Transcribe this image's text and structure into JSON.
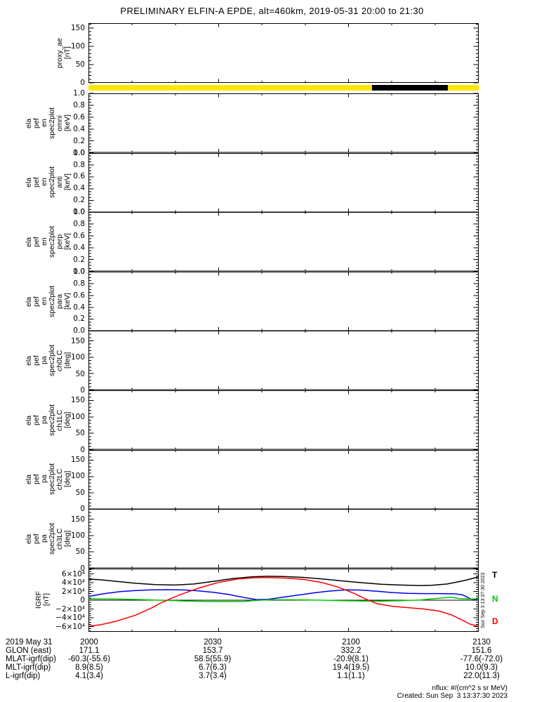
{
  "chart_data": {
    "type": "line",
    "title": "PRELIMINARY ELFIN-A EPDE, alt=460km, 2019-05-31 20:00 to 21:30",
    "x_axis": {
      "tick_labels": [
        "2000",
        "2030",
        "2100",
        "2130"
      ],
      "minor_divisions": 9,
      "time_range": [
        "2019-05-31 20:00",
        "2019-05-31 21:30"
      ]
    },
    "mode_bar": {
      "color": "#ffe600",
      "segments": [
        {
          "color": "#000000",
          "start": 0.727,
          "end": 0.921
        }
      ]
    },
    "right_labels": [
      {
        "text": "T",
        "color": "#000000"
      },
      {
        "text": "N",
        "color": "#00c800"
      },
      {
        "text": "D",
        "color": "#ff0000"
      }
    ],
    "side_timestamp": "Sun Sep  3 13:37:30 2023",
    "panels": [
      {
        "name": "proxy_ae",
        "label": "proxy_ae\n[nT]",
        "ylim": [
          0,
          163
        ],
        "minor_start": 0,
        "minor_step": 10,
        "major": [
          {
            "v": 0,
            "t": "0"
          },
          {
            "v": 50,
            "t": "50"
          },
          {
            "v": 100,
            "t": "100"
          },
          {
            "v": 150,
            "t": "150"
          }
        ]
      },
      {
        "name": "ela_pef_en_spec2plot_omni",
        "label": "ela\npef\nen\nspec2plot\nomni\n[keV]",
        "ylim": [
          0,
          1
        ],
        "minor_start": 0,
        "minor_step": 0.05,
        "major": [
          {
            "v": 0,
            "t": "0.0"
          },
          {
            "v": 0.2,
            "t": "0.2"
          },
          {
            "v": 0.4,
            "t": "0.4"
          },
          {
            "v": 0.6,
            "t": "0.6"
          },
          {
            "v": 0.8,
            "t": "0.8"
          },
          {
            "v": 1,
            "t": "1.0"
          }
        ]
      },
      {
        "name": "ela_pef_en_spec2plot_anti",
        "label": "ela\npef\nen\nspec2plot\nanti\n[keV]",
        "ylim": [
          0,
          1
        ],
        "minor_start": 0,
        "minor_step": 0.05,
        "major": [
          {
            "v": 0,
            "t": "0.0"
          },
          {
            "v": 0.2,
            "t": "0.2"
          },
          {
            "v": 0.4,
            "t": "0.4"
          },
          {
            "v": 0.6,
            "t": "0.6"
          },
          {
            "v": 0.8,
            "t": "0.8"
          },
          {
            "v": 1,
            "t": "1.0"
          }
        ]
      },
      {
        "name": "ela_pef_en_spec2plot_perp",
        "label": "ela\npef\nen\nspec2plot\nperp\n[keV]",
        "ylim": [
          0,
          1
        ],
        "minor_start": 0,
        "minor_step": 0.05,
        "major": [
          {
            "v": 0,
            "t": "0.0"
          },
          {
            "v": 0.2,
            "t": "0.2"
          },
          {
            "v": 0.4,
            "t": "0.4"
          },
          {
            "v": 0.6,
            "t": "0.6"
          },
          {
            "v": 0.8,
            "t": "0.8"
          },
          {
            "v": 1,
            "t": "1.0"
          }
        ]
      },
      {
        "name": "ela_pef_en_spec2plot_para",
        "label": "ela\npef\nen\nspec2plot\npara\n[keV]",
        "ylim": [
          0,
          1
        ],
        "minor_start": 0,
        "minor_step": 0.05,
        "major": [
          {
            "v": 0,
            "t": "0.0"
          },
          {
            "v": 0.2,
            "t": "0.2"
          },
          {
            "v": 0.4,
            "t": "0.4"
          },
          {
            "v": 0.6,
            "t": "0.6"
          },
          {
            "v": 0.8,
            "t": "0.8"
          },
          {
            "v": 1,
            "t": "1.0"
          }
        ]
      },
      {
        "name": "ela_pef_pa_spec2plot_ch0LC",
        "label": "ela\npef\npa\nspec2plot\nch0LC\n[deg]",
        "ylim": [
          0,
          181
        ],
        "minor_start": 0,
        "minor_step": 10,
        "major": [
          {
            "v": 0,
            "t": "0"
          },
          {
            "v": 50,
            "t": "50"
          },
          {
            "v": 100,
            "t": "100"
          },
          {
            "v": 150,
            "t": "150"
          }
        ]
      },
      {
        "name": "ela_pef_pa_spec2plot_ch1LC",
        "label": "ela\npef\npa\nspec2plot\nch1LC\n[deg]",
        "ylim": [
          0,
          181
        ],
        "minor_start": 0,
        "minor_step": 10,
        "major": [
          {
            "v": 0,
            "t": "0"
          },
          {
            "v": 50,
            "t": "50"
          },
          {
            "v": 100,
            "t": "100"
          },
          {
            "v": 150,
            "t": "150"
          }
        ]
      },
      {
        "name": "ela_pef_pa_spec2plot_ch2LC",
        "label": "ela\npef\npa\nspec2plot\nch2LC\n[deg]",
        "ylim": [
          0,
          181
        ],
        "minor_start": 0,
        "minor_step": 10,
        "major": [
          {
            "v": 0,
            "t": "0"
          },
          {
            "v": 50,
            "t": "50"
          },
          {
            "v": 100,
            "t": "100"
          },
          {
            "v": 150,
            "t": "150"
          }
        ]
      },
      {
        "name": "ela_pef_pa_spec2plot_ch3LC",
        "label": "ela\npef\npa\nspec2plot\nch3LC\n[deg]",
        "ylim": [
          0,
          181
        ],
        "minor_start": 0,
        "minor_step": 10,
        "major": [
          {
            "v": 0,
            "t": "0"
          },
          {
            "v": 50,
            "t": "50"
          },
          {
            "v": 100,
            "t": "100"
          },
          {
            "v": 150,
            "t": "150"
          }
        ]
      },
      {
        "name": "IGRF",
        "label": "IGRF\n[nT]",
        "ylim": [
          -72000,
          72000
        ],
        "minor_start": -70000,
        "minor_step": 5000,
        "zero_line": true,
        "major": [
          {
            "v": 60000,
            "t": "6×10⁴"
          },
          {
            "v": 40000,
            "t": "4×10⁴"
          },
          {
            "v": 20000,
            "t": "2×10⁴"
          },
          {
            "v": 0,
            "t": "0"
          },
          {
            "v": -20000,
            "t": "−2×10⁴"
          },
          {
            "v": -40000,
            "t": "−4×10⁴"
          },
          {
            "v": -60000,
            "t": "−6×10⁴"
          }
        ],
        "series": [
          {
            "name": "T",
            "color": "#000000",
            "points": [
              [
                0,
                48000
              ],
              [
                0.03,
                46500
              ],
              [
                0.07,
                43000
              ],
              [
                0.12,
                38500
              ],
              [
                0.17,
                35500
              ],
              [
                0.22,
                34500
              ],
              [
                0.27,
                37000
              ],
              [
                0.32,
                43000
              ],
              [
                0.37,
                49500
              ],
              [
                0.42,
                53500
              ],
              [
                0.46,
                54500
              ],
              [
                0.5,
                54000
              ],
              [
                0.55,
                52000
              ],
              [
                0.6,
                48500
              ],
              [
                0.65,
                44000
              ],
              [
                0.7,
                40000
              ],
              [
                0.75,
                36500
              ],
              [
                0.8,
                34500
              ],
              [
                0.85,
                33500
              ],
              [
                0.88,
                34000
              ],
              [
                0.92,
                37000
              ],
              [
                0.96,
                44000
              ],
              [
                1,
                53000
              ]
            ]
          },
          {
            "name": "blue-component",
            "color": "#0000ee",
            "points": [
              [
                0,
                9000
              ],
              [
                0.04,
                15000
              ],
              [
                0.08,
                19500
              ],
              [
                0.12,
                22000
              ],
              [
                0.16,
                23500
              ],
              [
                0.2,
                24000
              ],
              [
                0.24,
                23500
              ],
              [
                0.28,
                21500
              ],
              [
                0.32,
                18000
              ],
              [
                0.36,
                13000
              ],
              [
                0.4,
                6000
              ],
              [
                0.43,
                1500
              ],
              [
                0.46,
                2000
              ],
              [
                0.5,
                7000
              ],
              [
                0.54,
                12000
              ],
              [
                0.58,
                17000
              ],
              [
                0.62,
                21000
              ],
              [
                0.66,
                23500
              ],
              [
                0.7,
                23000
              ],
              [
                0.74,
                20500
              ],
              [
                0.78,
                17500
              ],
              [
                0.82,
                15500
              ],
              [
                0.86,
                15000
              ],
              [
                0.9,
                15000
              ],
              [
                0.94,
                14500
              ],
              [
                0.96,
                12000
              ],
              [
                0.98,
                3000
              ],
              [
                1,
                1000
              ]
            ]
          },
          {
            "name": "N",
            "color": "#00c800",
            "points": [
              [
                0,
                3000
              ],
              [
                0.05,
                2800
              ],
              [
                0.1,
                2200
              ],
              [
                0.15,
                1000
              ],
              [
                0.2,
                -500
              ],
              [
                0.25,
                -2000
              ],
              [
                0.3,
                -2800
              ],
              [
                0.35,
                -3000
              ],
              [
                0.4,
                -2500
              ],
              [
                0.44,
                0
              ],
              [
                0.47,
                1200
              ],
              [
                0.5,
                1000
              ],
              [
                0.55,
                800
              ],
              [
                0.6,
                0
              ],
              [
                0.65,
                -1200
              ],
              [
                0.7,
                -1800
              ],
              [
                0.75,
                -2000
              ],
              [
                0.8,
                -1200
              ],
              [
                0.85,
                500
              ],
              [
                0.88,
                3000
              ],
              [
                0.91,
                5500
              ],
              [
                0.93,
                6500
              ],
              [
                0.95,
                4000
              ],
              [
                0.97,
                3000
              ],
              [
                1,
                3000
              ]
            ]
          },
          {
            "name": "D",
            "color": "#ff0000",
            "points": [
              [
                0,
                -59000
              ],
              [
                0.03,
                -56000
              ],
              [
                0.07,
                -48000
              ],
              [
                0.12,
                -34000
              ],
              [
                0.16,
                -18000
              ],
              [
                0.19,
                -4000
              ],
              [
                0.23,
                11000
              ],
              [
                0.28,
                27000
              ],
              [
                0.33,
                40000
              ],
              [
                0.38,
                48000
              ],
              [
                0.42,
                51000
              ],
              [
                0.46,
                51500
              ],
              [
                0.5,
                50500
              ],
              [
                0.55,
                47500
              ],
              [
                0.6,
                40000
              ],
              [
                0.64,
                30000
              ],
              [
                0.68,
                16000
              ],
              [
                0.71,
                3000
              ],
              [
                0.74,
                -8000
              ],
              [
                0.78,
                -14000
              ],
              [
                0.82,
                -17000
              ],
              [
                0.86,
                -20000
              ],
              [
                0.9,
                -25000
              ],
              [
                0.93,
                -33000
              ],
              [
                0.96,
                -46000
              ],
              [
                0.98,
                -55000
              ],
              [
                1,
                -59000
              ]
            ]
          }
        ]
      }
    ]
  },
  "footer": {
    "rows": [
      {
        "label": "2019 May 31",
        "values": [
          "2000",
          "2030",
          "2100",
          "2130"
        ]
      },
      {
        "label": "GLON (east)",
        "values": [
          "171.1",
          "153.7",
          "332.2",
          "151.6"
        ]
      },
      {
        "label": "MLAT-igrf(dip)",
        "values": [
          "-60.3(-55.6)",
          "58.5(55.9)",
          "-20.9(8.1)",
          "-77.6(-72.0)"
        ]
      },
      {
        "label": "MLT-igrf(dip)",
        "values": [
          "8.9(8.5)",
          "6.7(6.3)",
          "19.4(19.5)",
          "10.0(9.3)"
        ]
      },
      {
        "label": "L-igrf(dip)",
        "values": [
          "4.1(3.4)",
          "3.7(3.4)",
          "1.1(1.1)",
          "22.0(11.3)"
        ]
      }
    ]
  },
  "notes": {
    "nflux": "nflux: #/(cm^2 s sr MeV)",
    "created": "Created: Sun Sep  3 13:37:30 2023"
  }
}
